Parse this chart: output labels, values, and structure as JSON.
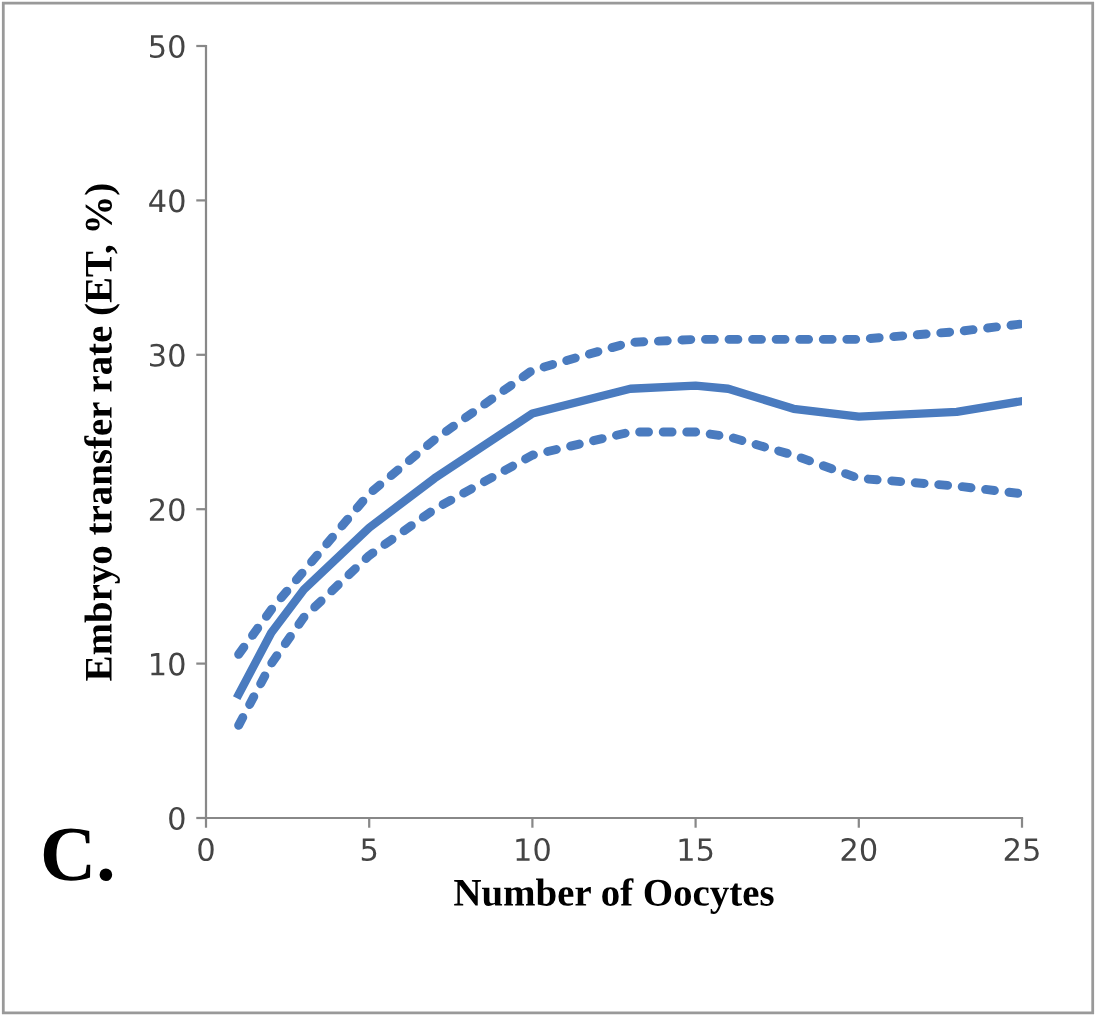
{
  "chart_data": {
    "type": "line",
    "xlabel": "Number of Oocytes",
    "ylabel": "Embryo transfer rate (ET, %)",
    "annotations": [
      "C."
    ],
    "series": [
      {
        "color": "#4a7bbf",
        "line_style": "dotted",
        "x": [
          1,
          2,
          3,
          5,
          7,
          10,
          13,
          15,
          18,
          20,
          23,
          25
        ],
        "values": [
          10.6,
          13.5,
          16,
          21,
          24.5,
          29,
          30.8,
          31,
          31,
          31,
          31.5,
          32
        ]
      },
      {
        "color": "#4a7bbf",
        "line_style": "solid",
        "x": [
          1,
          2,
          3,
          5,
          7,
          10,
          13,
          15,
          16,
          18,
          20,
          23,
          25
        ],
        "values": [
          8,
          12,
          14.8,
          18.8,
          22,
          26.2,
          27.8,
          28,
          27.8,
          26.5,
          26,
          26.3,
          27
        ]
      },
      {
        "color": "#4a7bbf",
        "line_style": "dotted",
        "x": [
          1,
          2,
          3,
          5,
          7,
          10,
          13,
          15,
          16,
          18,
          20,
          23,
          25
        ],
        "values": [
          6,
          10,
          13,
          17,
          20,
          23.5,
          25,
          25,
          24.7,
          23.5,
          22,
          21.5,
          21
        ]
      }
    ],
    "xlim": [
      0,
      25
    ],
    "xticks": [
      0,
      5,
      10,
      15,
      20,
      25
    ],
    "ylim": [
      0,
      50
    ],
    "yticks": [
      0,
      10,
      20,
      30,
      40,
      50
    ],
    "grid": false,
    "legend": false
  }
}
